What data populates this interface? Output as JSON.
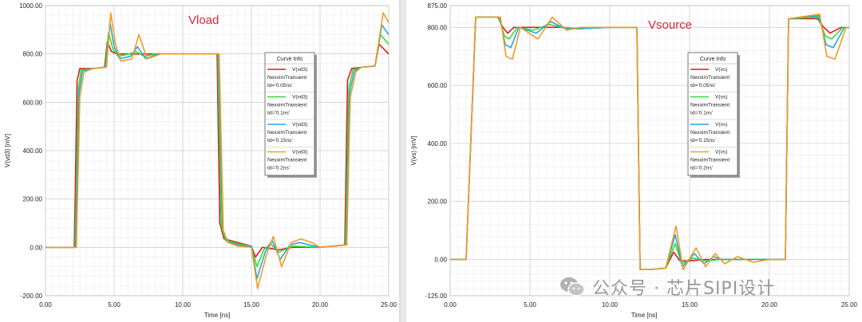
{
  "chart_data": [
    {
      "type": "line",
      "title": "Vload",
      "title_color": "#e0243a",
      "xlabel": "Time [ns]",
      "ylabel": "V(vd3) [mV]",
      "xlim": [
        0,
        25
      ],
      "ylim": [
        -200,
        1000
      ],
      "x_ticks": [
        "0.00",
        "5.00",
        "10.00",
        "15.00",
        "20.00",
        "25.00"
      ],
      "y_ticks": [
        "-200.00",
        "0.00",
        "200.00",
        "400.00",
        "600.00",
        "800.00",
        "1000.00"
      ],
      "x_tick_values": [
        0,
        5,
        10,
        15,
        20,
        25
      ],
      "y_tick_values": [
        -200,
        0,
        200,
        400,
        600,
        800,
        1000
      ],
      "legend": {
        "title": "Curve Info",
        "placement": "center-right"
      },
      "grid": true,
      "series": [
        {
          "name": "V(vd3)",
          "source": "NexximTransient",
          "param": "td='0.05ns'",
          "color": "#e31a1c",
          "x": [
            0,
            2.1,
            2.3,
            2.5,
            3.5,
            4.3,
            4.5,
            4.8,
            5.2,
            6.0,
            7.0,
            8.0,
            10.0,
            12.5,
            12.7,
            13.0,
            14.0,
            15.0,
            15.3,
            15.8,
            17.0,
            18.0,
            20.0,
            21.8,
            22.0,
            22.3,
            23.0,
            24.0,
            24.3,
            25.0
          ],
          "y": [
            0,
            0,
            690,
            740,
            740,
            745,
            850,
            810,
            800,
            800,
            800,
            800,
            800,
            800,
            100,
            35,
            20,
            5,
            -40,
            0,
            -10,
            0,
            0,
            10,
            690,
            740,
            745,
            750,
            840,
            800
          ]
        },
        {
          "name": "V(vd3)",
          "source": "NexximTransient",
          "param": "td='0.1ns'",
          "color": "#33dd33",
          "x": [
            0,
            2.15,
            2.4,
            2.6,
            3.5,
            4.35,
            4.6,
            4.9,
            5.3,
            6.1,
            6.6,
            7.2,
            8.0,
            10.0,
            12.55,
            12.8,
            13.1,
            14.0,
            15.0,
            15.4,
            15.9,
            16.4,
            17.0,
            18.0,
            20.0,
            21.85,
            22.1,
            22.4,
            23.0,
            24.0,
            24.4,
            25.0
          ],
          "y": [
            0,
            0,
            660,
            735,
            740,
            745,
            890,
            820,
            790,
            800,
            810,
            790,
            800,
            800,
            800,
            90,
            30,
            15,
            5,
            -80,
            -10,
            15,
            -20,
            5,
            0,
            10,
            660,
            735,
            745,
            750,
            880,
            840
          ]
        },
        {
          "name": "V(vd3)",
          "source": "NexximTransient",
          "param": "td='0.15ns'",
          "color": "#1eaadc",
          "x": [
            0,
            2.2,
            2.45,
            2.7,
            3.5,
            4.4,
            4.7,
            5.0,
            5.4,
            6.2,
            6.7,
            7.3,
            8.2,
            10.0,
            12.6,
            12.9,
            13.2,
            14.0,
            15.0,
            15.4,
            16.0,
            16.5,
            17.1,
            17.8,
            18.5,
            20.0,
            21.9,
            22.15,
            22.5,
            23.0,
            24.0,
            24.5,
            25.0
          ],
          "y": [
            0,
            0,
            640,
            730,
            740,
            745,
            930,
            830,
            780,
            790,
            830,
            780,
            800,
            800,
            800,
            80,
            25,
            10,
            5,
            -130,
            -20,
            30,
            -50,
            10,
            20,
            0,
            10,
            640,
            730,
            745,
            750,
            920,
            880
          ]
        },
        {
          "name": "V(vd3)",
          "source": "NexximTransient",
          "param": "td='0.2ns'",
          "color": "#f59a23",
          "x": [
            0,
            2.25,
            2.5,
            2.8,
            3.5,
            4.45,
            4.75,
            5.1,
            5.5,
            6.3,
            6.8,
            7.4,
            8.4,
            10.0,
            12.65,
            12.95,
            13.3,
            14.0,
            15.0,
            15.45,
            16.1,
            16.6,
            17.2,
            17.9,
            18.6,
            19.4,
            20.0,
            21.95,
            22.2,
            22.6,
            23.0,
            24.0,
            24.6,
            25.0
          ],
          "y": [
            0,
            0,
            620,
            725,
            740,
            745,
            970,
            840,
            770,
            780,
            880,
            780,
            800,
            800,
            800,
            70,
            20,
            5,
            0,
            -170,
            -30,
            45,
            -80,
            20,
            35,
            20,
            0,
            10,
            620,
            725,
            745,
            750,
            970,
            930
          ]
        }
      ]
    },
    {
      "type": "line",
      "title": "Vsource",
      "title_color": "#e0243a",
      "xlabel": "Time [ns]",
      "ylabel": "V(vs) [mV]",
      "xlim": [
        0,
        25
      ],
      "ylim": [
        -125,
        875
      ],
      "x_ticks": [
        "0.00",
        "5.00",
        "10.00",
        "15.00",
        "20.00",
        "25.00"
      ],
      "y_ticks": [
        "-125.00",
        "0.00",
        "200.00",
        "400.00",
        "600.00",
        "800.00",
        "875.00"
      ],
      "x_tick_values": [
        0,
        5,
        10,
        15,
        20,
        25
      ],
      "y_tick_values": [
        -125,
        0,
        200,
        400,
        600,
        800,
        875
      ],
      "legend": {
        "title": "Curve Info",
        "placement": "center-right"
      },
      "grid": true,
      "series": [
        {
          "name": "V(vs)",
          "source": "NexximTransient",
          "param": "td='0.05ns'",
          "color": "#e31a1c",
          "x": [
            0,
            1.0,
            1.6,
            3.0,
            3.3,
            3.6,
            4.0,
            5.0,
            6.0,
            7.0,
            8.0,
            10.0,
            11.7,
            11.9,
            12.5,
            13.5,
            14.0,
            14.4,
            15.0,
            16.0,
            17.0,
            18.0,
            20.0,
            21.0,
            21.2,
            23.0,
            23.4,
            23.8,
            24.5,
            25.0
          ],
          "y": [
            0,
            0,
            835,
            835,
            800,
            780,
            800,
            800,
            800,
            800,
            795,
            800,
            800,
            -35,
            -35,
            -30,
            25,
            -5,
            -5,
            0,
            0,
            0,
            0,
            0,
            830,
            830,
            800,
            780,
            800,
            800
          ]
        },
        {
          "name": "V(vs)",
          "source": "NexximTransient",
          "param": "td='0.1ns'",
          "color": "#33dd33",
          "x": [
            0,
            1.0,
            1.6,
            3.05,
            3.4,
            3.7,
            4.2,
            5.2,
            6.2,
            7.0,
            8.0,
            10.0,
            11.7,
            11.9,
            12.5,
            13.5,
            14.1,
            14.5,
            15.2,
            16.0,
            17.0,
            18.0,
            20.0,
            21.0,
            21.2,
            23.05,
            23.5,
            23.9,
            24.6,
            25.0
          ],
          "y": [
            0,
            0,
            835,
            835,
            770,
            760,
            800,
            790,
            810,
            800,
            795,
            800,
            800,
            -35,
            -35,
            -30,
            55,
            -15,
            5,
            -5,
            0,
            0,
            0,
            0,
            830,
            835,
            770,
            760,
            800,
            800
          ]
        },
        {
          "name": "V(vs)",
          "source": "NexximTransient",
          "param": "td='0.15ns'",
          "color": "#1eaadc",
          "x": [
            0,
            1.0,
            1.6,
            3.1,
            3.45,
            3.8,
            4.3,
            5.4,
            6.3,
            7.2,
            8.0,
            10.0,
            11.7,
            11.9,
            12.5,
            13.5,
            14.1,
            14.55,
            15.3,
            15.9,
            16.5,
            17.0,
            18.0,
            20.0,
            21.0,
            21.2,
            23.1,
            23.55,
            24.0,
            24.7,
            25.0
          ],
          "y": [
            0,
            0,
            835,
            835,
            740,
            730,
            800,
            780,
            820,
            795,
            795,
            800,
            800,
            -35,
            -35,
            -30,
            85,
            -25,
            20,
            -15,
            10,
            0,
            0,
            0,
            0,
            830,
            840,
            740,
            730,
            800,
            800
          ]
        },
        {
          "name": "V(vs)",
          "source": "NexximTransient",
          "param": "td='0.2ns'",
          "color": "#f59a23",
          "x": [
            0,
            1.0,
            1.6,
            3.15,
            3.5,
            3.9,
            4.4,
            5.5,
            6.4,
            7.3,
            8.2,
            10.0,
            11.7,
            11.9,
            12.5,
            13.5,
            14.15,
            14.6,
            15.4,
            16.0,
            16.6,
            17.2,
            18.0,
            19.0,
            20.0,
            21.0,
            21.2,
            23.15,
            23.6,
            24.1,
            24.8,
            25.0
          ],
          "y": [
            0,
            0,
            835,
            835,
            700,
            690,
            800,
            760,
            835,
            790,
            800,
            800,
            800,
            -35,
            -35,
            -30,
            115,
            -35,
            40,
            -25,
            20,
            -15,
            10,
            -10,
            0,
            0,
            830,
            845,
            700,
            690,
            800,
            800
          ]
        }
      ]
    }
  ],
  "watermark": {
    "text": "公众号 · 芯片SIPI设计"
  }
}
